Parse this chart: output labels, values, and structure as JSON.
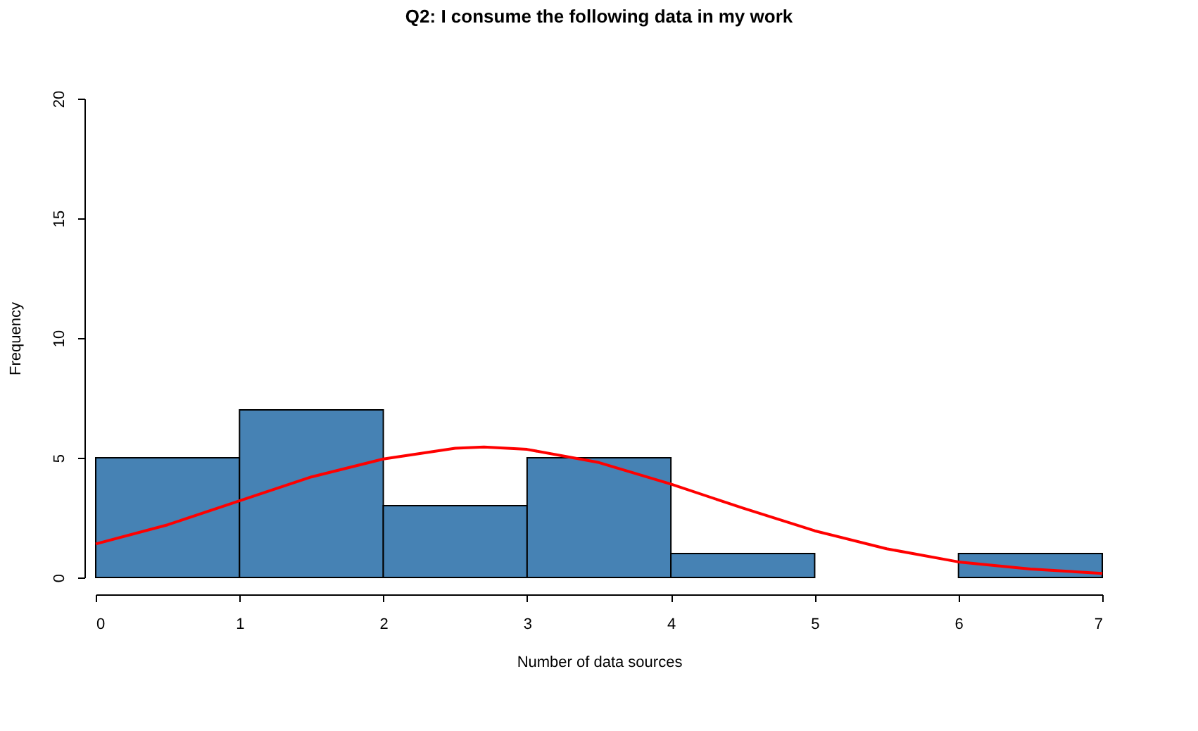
{
  "chart_data": {
    "type": "histogram",
    "title": "Q2: I consume the following data in my work",
    "xlabel": "Number of data sources",
    "ylabel": "Frequency",
    "bins": [
      0,
      1,
      2,
      3,
      4,
      5,
      6,
      7
    ],
    "values": [
      5,
      7,
      3,
      5,
      1,
      0,
      1
    ],
    "color": "#4682b4",
    "series": [
      {
        "type": "line",
        "color": "#ff0000",
        "x": [
          0,
          0.5,
          1,
          1.5,
          2,
          2.5,
          2.7,
          3,
          3.5,
          4,
          4.5,
          5,
          5.5,
          6,
          6.5,
          7
        ],
        "values": [
          1.4,
          2.2,
          3.2,
          4.2,
          4.95,
          5.4,
          5.45,
          5.35,
          4.8,
          3.9,
          2.9,
          1.95,
          1.2,
          0.65,
          0.35,
          0.17
        ]
      }
    ],
    "xlim": [
      0,
      7
    ],
    "xticks": [
      0,
      1,
      2,
      3,
      4,
      5,
      6,
      7
    ],
    "ylim": [
      0,
      20
    ],
    "yticks": [
      0,
      5,
      10,
      15,
      20
    ]
  }
}
